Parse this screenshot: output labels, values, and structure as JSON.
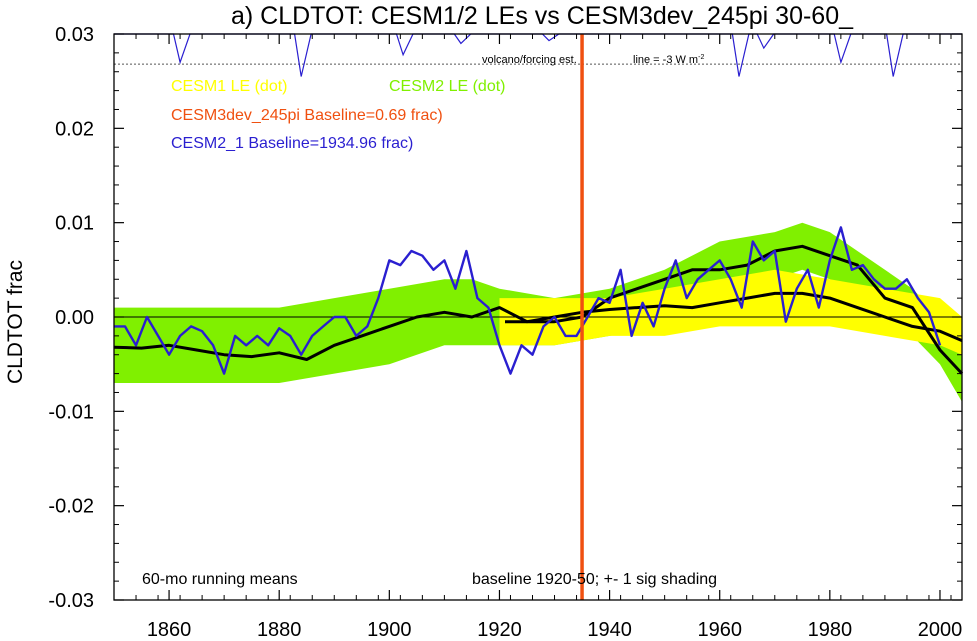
{
  "chart_data": {
    "type": "line",
    "title": "a) CLDTOT: CESM1/2 LEs vs CESM3dev_245pi 30-60_",
    "ylabel": "CLDTOT frac",
    "xlabel": "",
    "xlim": [
      1850,
      2004
    ],
    "ylim": [
      -0.03,
      0.03
    ],
    "x_ticks": [
      1860,
      1880,
      1900,
      1920,
      1940,
      1960,
      1980,
      2000
    ],
    "y_ticks": [
      -0.03,
      -0.02,
      -0.01,
      0.0,
      0.01,
      0.02,
      0.03
    ],
    "y_tick_labels": [
      "-0.03",
      "-0.02",
      "-0.01",
      "0.00",
      "0.01",
      "0.02",
      "0.03"
    ],
    "grid": false,
    "legend": {
      "cesm1": "CESM1 LE (dot)",
      "cesm2": "CESM2 LE (dot)",
      "cesm3": "CESM3dev_245pi Baseline=0.69 frac)",
      "cesm2_1": "CESM2_1 Baseline=1934.96 frac)"
    },
    "annotations": {
      "volcano": "volcano/forcing est.",
      "line_label": "line = -3 W m",
      "line_sup": "-2",
      "running": "60-mo running means",
      "baseline": "baseline 1920-50; +- 1 sig shading"
    },
    "colors": {
      "cesm1": "#ffff00",
      "cesm2": "#80f000",
      "cesm3": "#f05010",
      "cesm2_1": "#2a1fd0",
      "mean": "#000000"
    },
    "vertical_marker_year": 1935,
    "volcano_reference_y": 0.0268,
    "volcano_dips": [
      {
        "year": 1862,
        "depth": 0.003
      },
      {
        "year": 1884,
        "depth": 0.0045
      },
      {
        "year": 1902.5,
        "depth": 0.0022
      },
      {
        "year": 1913,
        "depth": 0.001
      },
      {
        "year": 1929,
        "depth": 0.0007
      },
      {
        "year": 1963.5,
        "depth": 0.0045
      },
      {
        "year": 1968,
        "depth": 0.0015
      },
      {
        "year": 1982,
        "depth": 0.003
      },
      {
        "year": 1991.5,
        "depth": 0.0045
      }
    ],
    "series": [
      {
        "name": "CESM2 LE (dot)",
        "role": "band",
        "x": [
          1850,
          1860,
          1870,
          1880,
          1890,
          1900,
          1910,
          1915,
          1920,
          1930,
          1940,
          1950,
          1960,
          1970,
          1975,
          1980,
          1990,
          1995,
          2000,
          2004
        ],
        "upper": [
          0.001,
          0.001,
          0.001,
          0.001,
          0.002,
          0.003,
          0.004,
          0.004,
          0.003,
          0.002,
          0.003,
          0.005,
          0.008,
          0.009,
          0.01,
          0.009,
          0.005,
          0.003,
          0.0,
          -0.002
        ],
        "lower": [
          -0.007,
          -0.007,
          -0.007,
          -0.007,
          -0.006,
          -0.005,
          -0.003,
          -0.003,
          -0.003,
          -0.003,
          -0.002,
          -0.001,
          0.002,
          0.004,
          0.005,
          0.004,
          0.001,
          -0.002,
          -0.005,
          -0.009
        ]
      },
      {
        "name": "CESM1 LE (dot)",
        "role": "band",
        "x": [
          1920,
          1930,
          1940,
          1950,
          1960,
          1970,
          1980,
          1990,
          2000,
          2004
        ],
        "upper": [
          0.002,
          0.002,
          0.002,
          0.003,
          0.004,
          0.005,
          0.004,
          0.003,
          0.002,
          0.0
        ],
        "lower": [
          -0.003,
          -0.003,
          -0.002,
          -0.002,
          -0.001,
          -0.001,
          -0.001,
          -0.002,
          -0.003,
          -0.004
        ]
      },
      {
        "name": "",
        "role": "line",
        "x": [
          1850,
          1855,
          1860,
          1865,
          1870,
          1875,
          1880,
          1885,
          1890,
          1895,
          1900,
          1905,
          1910,
          1915,
          1920,
          1925,
          1930,
          1935,
          1940,
          1945,
          1950,
          1955,
          1960,
          1965,
          1970,
          1975,
          1980,
          1985,
          1990,
          1995,
          2000,
          2004
        ],
        "y": [
          -0.0032,
          -0.0033,
          -0.003,
          -0.0035,
          -0.004,
          -0.0042,
          -0.0038,
          -0.0045,
          -0.003,
          -0.002,
          -0.001,
          0.0,
          0.0005,
          0.0,
          0.001,
          -0.0005,
          -0.0005,
          0.0,
          0.002,
          0.003,
          0.004,
          0.005,
          0.005,
          0.0055,
          0.007,
          0.0075,
          0.0065,
          0.0055,
          0.002,
          0.001,
          -0.0035,
          -0.006
        ]
      },
      {
        "name": "",
        "role": "line",
        "x": [
          1921,
          1925,
          1930,
          1935,
          1940,
          1945,
          1950,
          1955,
          1960,
          1965,
          1970,
          1975,
          1980,
          1985,
          1990,
          1995,
          2000,
          2004
        ],
        "y": [
          -0.0005,
          -0.0005,
          0.0,
          0.0005,
          0.0008,
          0.001,
          0.0012,
          0.001,
          0.0015,
          0.002,
          0.0025,
          0.0025,
          0.002,
          0.001,
          0.0,
          -0.001,
          -0.0015,
          -0.0025
        ]
      },
      {
        "name": "CESM2_1 Baseline=1934.96 frac)",
        "role": "line",
        "x": [
          1850,
          1852,
          1854,
          1856,
          1858,
          1860,
          1862,
          1864,
          1866,
          1868,
          1870,
          1872,
          1874,
          1876,
          1878,
          1880,
          1882,
          1884,
          1886,
          1888,
          1890,
          1892,
          1894,
          1896,
          1898,
          1900,
          1902,
          1904,
          1906,
          1908,
          1910,
          1912,
          1914,
          1916,
          1918,
          1920,
          1922,
          1924,
          1926,
          1928,
          1930,
          1932,
          1934,
          1936,
          1938,
          1940,
          1942,
          1944,
          1946,
          1948,
          1950,
          1952,
          1954,
          1956,
          1958,
          1960,
          1962,
          1964,
          1966,
          1968,
          1970,
          1972,
          1974,
          1976,
          1978,
          1980,
          1982,
          1984,
          1986,
          1988,
          1990,
          1992,
          1994,
          1996,
          1998,
          2000
        ],
        "y": [
          -0.001,
          -0.001,
          -0.003,
          0.0,
          -0.002,
          -0.004,
          -0.002,
          -0.001,
          -0.0015,
          -0.003,
          -0.006,
          -0.002,
          -0.003,
          -0.002,
          -0.003,
          -0.0012,
          -0.002,
          -0.004,
          -0.002,
          -0.001,
          0.0,
          0.0,
          -0.002,
          -0.001,
          0.002,
          0.006,
          0.0055,
          0.007,
          0.0065,
          0.005,
          0.006,
          0.003,
          0.007,
          0.002,
          0.001,
          -0.003,
          -0.006,
          -0.003,
          -0.004,
          -0.001,
          0.0,
          -0.002,
          -0.002,
          0.0,
          0.002,
          0.0015,
          0.005,
          -0.002,
          0.0015,
          -0.001,
          0.003,
          0.006,
          0.002,
          0.004,
          0.005,
          0.006,
          0.004,
          0.001,
          0.008,
          0.006,
          0.007,
          -0.0005,
          0.003,
          0.005,
          0.001,
          0.006,
          0.0095,
          0.005,
          0.0055,
          0.004,
          0.003,
          0.003,
          0.004,
          0.002,
          0.0005,
          -0.003
        ]
      }
    ]
  }
}
